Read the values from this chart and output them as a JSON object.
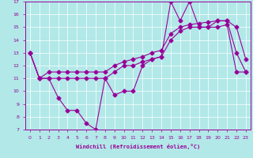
{
  "xlabel": "Windchill (Refroidissement éolien,°C)",
  "xlim": [
    -0.5,
    23.5
  ],
  "ylim": [
    7,
    17
  ],
  "yticks": [
    7,
    8,
    9,
    10,
    11,
    12,
    13,
    14,
    15,
    16,
    17
  ],
  "xticks": [
    0,
    1,
    2,
    3,
    4,
    5,
    6,
    7,
    8,
    9,
    10,
    11,
    12,
    13,
    14,
    15,
    16,
    17,
    18,
    19,
    20,
    21,
    22,
    23
  ],
  "bg_color": "#b2e8e8",
  "line_color": "#990099",
  "grid_color": "#ffffff",
  "main_data": [
    13,
    11,
    11,
    9.5,
    8.5,
    8.5,
    7.5,
    7,
    11,
    9.7,
    10,
    10,
    12,
    12.5,
    12.7,
    17,
    15.5,
    17,
    15,
    15,
    15.5,
    15.5,
    13,
    11.5
  ],
  "upper_data": [
    13,
    11,
    11.5,
    11.5,
    11.5,
    11.5,
    11.5,
    11.5,
    11.5,
    12,
    12.3,
    12.5,
    12.7,
    13,
    13.2,
    14.5,
    15,
    15.2,
    15.3,
    15.4,
    15.5,
    15.5,
    15,
    12.5
  ],
  "lower_data": [
    13,
    11,
    11,
    11,
    11,
    11,
    11,
    11,
    11,
    11.5,
    12,
    12,
    12.3,
    12.5,
    12.7,
    14,
    14.7,
    15,
    15,
    15,
    15,
    15.2,
    11.5,
    11.5
  ]
}
